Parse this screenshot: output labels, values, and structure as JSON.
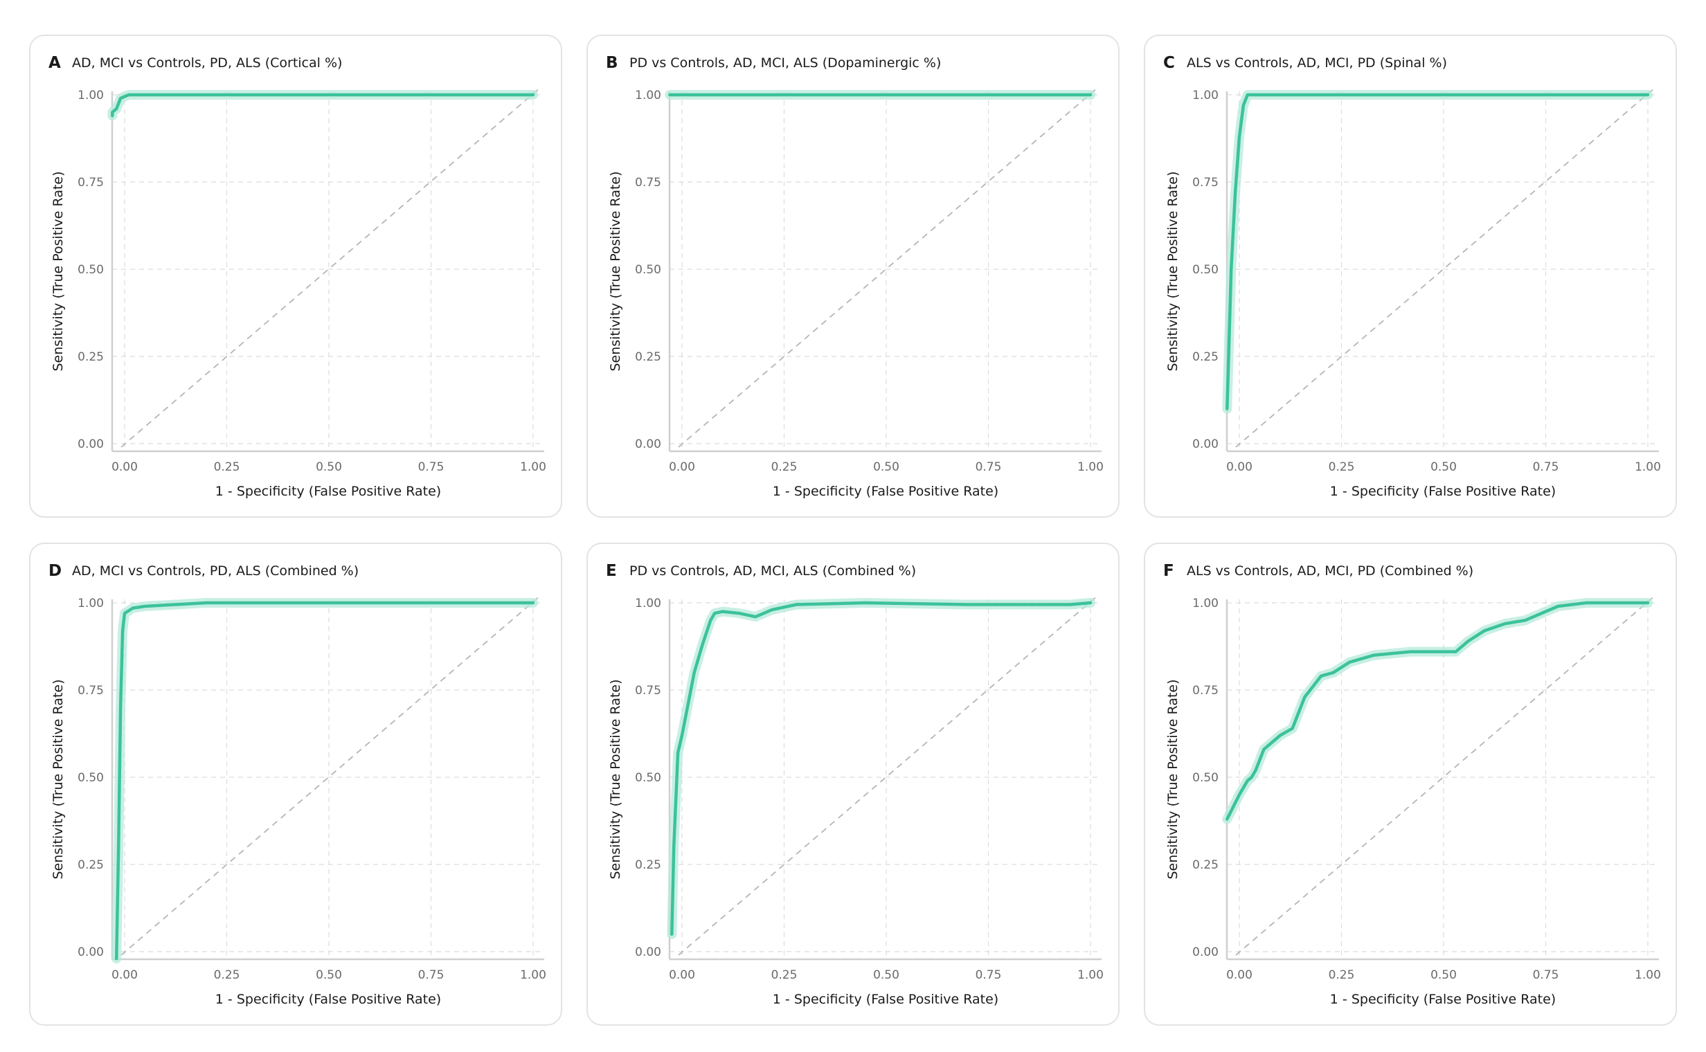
{
  "colors": {
    "curve": "#3cc29a",
    "curve_band": "#b6ead9",
    "reference": "#b5b5b5",
    "grid": "#dcdcdc",
    "axis": "#cfcfcf",
    "text": "#1a1a1a",
    "tick_text": "#6a6a6a"
  },
  "chart_data": [
    {
      "type": "line",
      "panel_letter": "A",
      "title": "AD, MCI vs Controls, PD, ALS (Cortical %)",
      "xlabel": "1 - Specificity (False Positive Rate)",
      "ylabel": "Sensitivity (True Positive Rate)",
      "xlim": [
        0,
        1
      ],
      "ylim": [
        0,
        1
      ],
      "xticks": [
        "0.00",
        "0.25",
        "0.50",
        "0.75",
        "1.00"
      ],
      "yticks": [
        "0.00",
        "0.25",
        "0.50",
        "0.75",
        "1.00"
      ],
      "grid": true,
      "diagonal_reference": true,
      "series": [
        {
          "x": [
            -0.03,
            -0.03,
            -0.02,
            -0.01,
            0.01,
            0.05,
            1.0
          ],
          "y": [
            0.94,
            0.95,
            0.96,
            0.99,
            1.0,
            1.0,
            1.0
          ]
        }
      ]
    },
    {
      "type": "line",
      "panel_letter": "B",
      "title": "PD vs Controls, AD, MCI, ALS (Dopaminergic %)",
      "xlabel": "1 - Specificity (False Positive Rate)",
      "ylabel": "Sensitivity (True Positive Rate)",
      "xlim": [
        0,
        1
      ],
      "ylim": [
        0,
        1
      ],
      "xticks": [
        "0.00",
        "0.25",
        "0.50",
        "0.75",
        "1.00"
      ],
      "yticks": [
        "0.00",
        "0.25",
        "0.50",
        "0.75",
        "1.00"
      ],
      "grid": true,
      "diagonal_reference": true,
      "series": [
        {
          "x": [
            -0.03,
            1.0
          ],
          "y": [
            1.0,
            1.0
          ]
        }
      ]
    },
    {
      "type": "line",
      "panel_letter": "C",
      "title": "ALS vs Controls, AD, MCI, PD (Spinal %)",
      "xlabel": "1 - Specificity (False Positive Rate)",
      "ylabel": "Sensitivity (True Positive Rate)",
      "xlim": [
        0,
        1
      ],
      "ylim": [
        0,
        1
      ],
      "xticks": [
        "0.00",
        "0.25",
        "0.50",
        "0.75",
        "1.00"
      ],
      "yticks": [
        "0.00",
        "0.25",
        "0.50",
        "0.75",
        "1.00"
      ],
      "grid": true,
      "diagonal_reference": true,
      "series": [
        {
          "x": [
            -0.03,
            -0.02,
            -0.01,
            0.0,
            0.01,
            0.02,
            0.04,
            1.0
          ],
          "y": [
            0.1,
            0.5,
            0.72,
            0.88,
            0.97,
            1.0,
            1.0,
            1.0
          ]
        }
      ]
    },
    {
      "type": "line",
      "panel_letter": "D",
      "title": "AD, MCI vs Controls, PD, ALS (Combined %)",
      "xlabel": "1 - Specificity (False Positive Rate)",
      "ylabel": "Sensitivity (True Positive Rate)",
      "xlim": [
        0,
        1
      ],
      "ylim": [
        0,
        1
      ],
      "xticks": [
        "0.00",
        "0.25",
        "0.50",
        "0.75",
        "1.00"
      ],
      "yticks": [
        "0.00",
        "0.25",
        "0.50",
        "0.75",
        "1.00"
      ],
      "grid": true,
      "diagonal_reference": true,
      "series": [
        {
          "x": [
            -0.02,
            -0.015,
            -0.01,
            -0.005,
            0.0,
            0.02,
            0.05,
            0.2,
            1.0
          ],
          "y": [
            -0.02,
            0.3,
            0.7,
            0.92,
            0.97,
            0.985,
            0.99,
            1.0,
            1.0
          ]
        }
      ]
    },
    {
      "type": "line",
      "panel_letter": "E",
      "title": "PD vs Controls, AD, MCI, ALS (Combined %)",
      "xlabel": "1 - Specificity (False Positive Rate)",
      "ylabel": "Sensitivity (True Positive Rate)",
      "xlim": [
        0,
        1
      ],
      "ylim": [
        0,
        1
      ],
      "xticks": [
        "0.00",
        "0.25",
        "0.50",
        "0.75",
        "1.00"
      ],
      "yticks": [
        "0.00",
        "0.25",
        "0.50",
        "0.75",
        "1.00"
      ],
      "grid": true,
      "diagonal_reference": true,
      "series": [
        {
          "x": [
            -0.025,
            -0.02,
            -0.01,
            0.0,
            0.01,
            0.03,
            0.05,
            0.07,
            0.08,
            0.1,
            0.14,
            0.18,
            0.22,
            0.28,
            0.45,
            0.7,
            0.95,
            1.0
          ],
          "y": [
            0.05,
            0.3,
            0.57,
            0.62,
            0.68,
            0.8,
            0.88,
            0.95,
            0.97,
            0.975,
            0.97,
            0.96,
            0.98,
            0.995,
            1.0,
            0.995,
            0.995,
            1.0
          ]
        }
      ]
    },
    {
      "type": "line",
      "panel_letter": "F",
      "title": "ALS vs Controls, AD, MCI, PD (Combined %)",
      "xlabel": "1 - Specificity (False Positive Rate)",
      "ylabel": "Sensitivity (True Positive Rate)",
      "xlim": [
        0,
        1
      ],
      "ylim": [
        0,
        1
      ],
      "xticks": [
        "0.00",
        "0.25",
        "0.50",
        "0.75",
        "1.00"
      ],
      "yticks": [
        "0.00",
        "0.25",
        "0.50",
        "0.75",
        "1.00"
      ],
      "grid": true,
      "diagonal_reference": true,
      "series": [
        {
          "x": [
            -0.03,
            0.0,
            0.02,
            0.03,
            0.04,
            0.06,
            0.1,
            0.13,
            0.14,
            0.16,
            0.18,
            0.2,
            0.23,
            0.27,
            0.33,
            0.42,
            0.5,
            0.53,
            0.56,
            0.6,
            0.65,
            0.7,
            0.74,
            0.78,
            0.85,
            1.0
          ],
          "y": [
            0.38,
            0.45,
            0.49,
            0.5,
            0.52,
            0.58,
            0.62,
            0.64,
            0.67,
            0.73,
            0.76,
            0.79,
            0.8,
            0.83,
            0.85,
            0.86,
            0.86,
            0.86,
            0.89,
            0.92,
            0.94,
            0.95,
            0.97,
            0.99,
            1.0,
            1.0
          ]
        }
      ]
    }
  ]
}
